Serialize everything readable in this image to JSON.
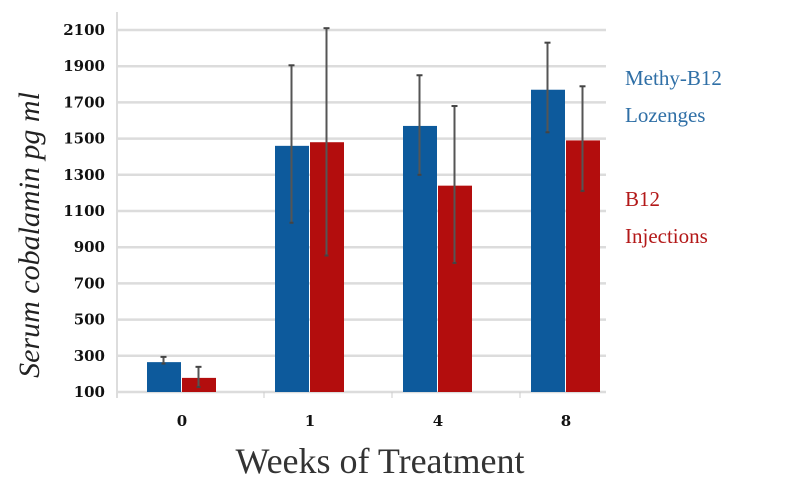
{
  "chart_data": {
    "type": "bar",
    "title": "",
    "xlabel": "Weeks of Treatment",
    "ylabel": "Serum cobalamin pg ml",
    "categories": [
      "0",
      "1",
      "4",
      "8"
    ],
    "ylim": [
      100,
      2100
    ],
    "yticks": [
      100,
      300,
      500,
      700,
      900,
      1100,
      1300,
      1500,
      1700,
      1900,
      2100
    ],
    "grid": true,
    "legend_position": "right",
    "series": [
      {
        "name": "Methy-B12 Lozenges",
        "legend_lines": [
          "Methy-B12",
          "Lozenges"
        ],
        "color": "#0d5a9c",
        "values": [
          265,
          1460,
          1570,
          1770
        ],
        "error_low": [
          257,
          1035,
          1300,
          1535
        ],
        "error_high": [
          294,
          1905,
          1850,
          2030
        ]
      },
      {
        "name": "B12 Injections",
        "legend_lines": [
          "B12",
          "Injections"
        ],
        "color": "#b30d0d",
        "values": [
          178,
          1480,
          1240,
          1490
        ],
        "error_low": [
          128,
          854,
          813,
          1211
        ],
        "error_high": [
          239,
          2110,
          1680,
          1789
        ]
      }
    ]
  }
}
